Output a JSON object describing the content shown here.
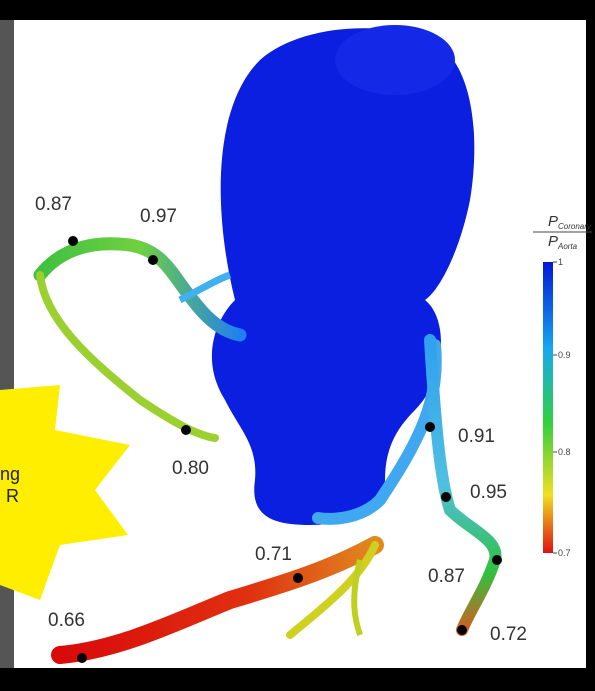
{
  "labels": [
    "0.87",
    "0.97",
    "0.80",
    "0.91",
    "0.95",
    "0.71",
    "0.87",
    "0.66",
    "0.72"
  ],
  "colorbar": {
    "numerator": {
      "symbol": "P",
      "subscript": "Coronary"
    },
    "denominator": {
      "symbol": "P",
      "subscript": "Aorta"
    },
    "ticks": [
      "1",
      "0.9",
      "0.8",
      "0.7"
    ]
  },
  "callout": {
    "lines": [
      "ng",
      "R"
    ]
  }
}
